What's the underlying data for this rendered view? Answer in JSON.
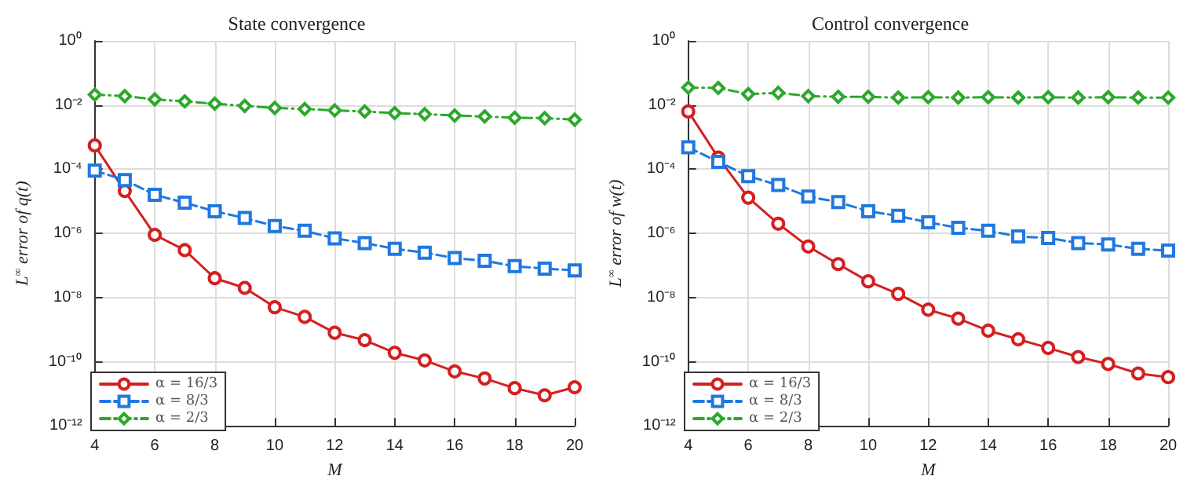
{
  "chart_data": [
    {
      "type": "line",
      "title": "State convergence",
      "xlabel": "M",
      "ylabel": "L$^{∞}$ error of q(t)",
      "x": [
        4,
        5,
        6,
        7,
        8,
        9,
        10,
        11,
        12,
        13,
        14,
        15,
        16,
        17,
        18,
        19,
        20
      ],
      "log": "y",
      "grid": true,
      "legend": "bottom left",
      "xlim": [
        4,
        20
      ],
      "xticks": [
        4,
        6,
        8,
        10,
        12,
        14,
        16,
        18,
        20
      ],
      "ylim": [
        1e-12,
        1
      ],
      "yticks": [
        {
          "value": 1e-12,
          "label": "10⁻¹²"
        },
        {
          "value": 1e-10,
          "label": "10⁻¹⁰"
        },
        {
          "value": 1e-08,
          "label": "10⁻⁸"
        },
        {
          "value": 1e-06,
          "label": "10⁻⁶"
        },
        {
          "value": 0.0001,
          "label": "10⁻⁴"
        },
        {
          "value": 0.01,
          "label": "10⁻²"
        },
        {
          "value": 1,
          "label": "10⁰"
        }
      ],
      "series": [
        {
          "name": "α = 16/3",
          "color": "#d42020",
          "marker": "circle",
          "line_style": "solid",
          "values": [
            0.00055,
            2.1e-05,
            9e-07,
            3e-07,
            4e-08,
            2e-08,
            5e-09,
            2.5e-09,
            8e-10,
            4.7e-10,
            1.9e-10,
            1.1e-10,
            5e-11,
            3e-11,
            1.5e-11,
            9e-12,
            1.6e-11
          ]
        },
        {
          "name": "α = 8/3",
          "color": "#1f78e0",
          "marker": "square",
          "line_style": "dashed",
          "values": [
            9e-05,
            4.6e-05,
            1.6e-05,
            9e-06,
            4.9e-06,
            3e-06,
            1.7e-06,
            1.2e-06,
            7e-07,
            5e-07,
            3.3e-07,
            2.5e-07,
            1.7e-07,
            1.4e-07,
            9.5e-08,
            8e-08,
            7e-08
          ]
        },
        {
          "name": "α = 2/3",
          "color": "#2ca82c",
          "marker": "diamond",
          "line_style": "dotted",
          "values": [
            0.021,
            0.019,
            0.015,
            0.013,
            0.011,
            0.0094,
            0.0081,
            0.0075,
            0.0068,
            0.0063,
            0.0056,
            0.0052,
            0.0047,
            0.0044,
            0.004,
            0.0039,
            0.0035
          ]
        }
      ]
    },
    {
      "type": "line",
      "title": "Control convergence",
      "xlabel": "M",
      "ylabel": "L$^{∞}$ error of w(t)",
      "x": [
        4,
        5,
        6,
        7,
        8,
        9,
        10,
        11,
        12,
        13,
        14,
        15,
        16,
        17,
        18,
        19,
        20
      ],
      "log": "y",
      "grid": true,
      "legend": "bottom left",
      "xlim": [
        4,
        20
      ],
      "xticks": [
        4,
        6,
        8,
        10,
        12,
        14,
        16,
        18,
        20
      ],
      "ylim": [
        1e-12,
        1
      ],
      "yticks": [
        {
          "value": 1e-12,
          "label": "10⁻¹²"
        },
        {
          "value": 1e-10,
          "label": "10⁻¹⁰"
        },
        {
          "value": 1e-08,
          "label": "10⁻⁸"
        },
        {
          "value": 1e-06,
          "label": "10⁻⁶"
        },
        {
          "value": 0.0001,
          "label": "10⁻⁴"
        },
        {
          "value": 0.01,
          "label": "10⁻²"
        },
        {
          "value": 1,
          "label": "10⁰"
        }
      ],
      "series": [
        {
          "name": "α = 16/3",
          "color": "#d42020",
          "marker": "circle",
          "line_style": "solid",
          "values": [
            0.0063,
            0.00023,
            1.3e-05,
            2e-06,
            3.9e-07,
            1.1e-07,
            3.2e-08,
            1.3e-08,
            4.2e-09,
            2.2e-09,
            9.3e-10,
            5e-10,
            2.7e-10,
            1.4e-10,
            8.5e-11,
            4.3e-11,
            3.3e-11
          ]
        },
        {
          "name": "α = 8/3",
          "color": "#1f78e0",
          "marker": "square",
          "line_style": "dashed",
          "values": [
            0.00048,
            0.00017,
            6.1e-05,
            3.2e-05,
            1.4e-05,
            9.4e-06,
            4.9e-06,
            3.5e-06,
            2.2e-06,
            1.5e-06,
            1.2e-06,
            8e-07,
            7.2e-07,
            5e-07,
            4.5e-07,
            3.3e-07,
            2.9e-07
          ]
        },
        {
          "name": "α = 2/3",
          "color": "#2ca82c",
          "marker": "diamond",
          "line_style": "dotted",
          "values": [
            0.035,
            0.034,
            0.022,
            0.024,
            0.019,
            0.018,
            0.018,
            0.017,
            0.0175,
            0.017,
            0.0175,
            0.017,
            0.0175,
            0.017,
            0.0175,
            0.017,
            0.017
          ]
        }
      ]
    }
  ]
}
